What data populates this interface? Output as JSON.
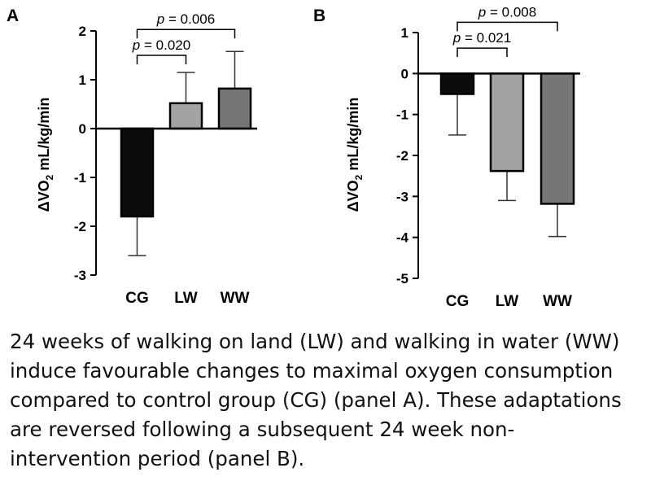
{
  "chart_data": [
    {
      "type": "bar",
      "panel_label": "A",
      "categories": [
        "CG",
        "LW",
        "WW"
      ],
      "values": [
        -1.8,
        0.52,
        0.82
      ],
      "error": [
        0.8,
        0.63,
        0.76
      ],
      "colors": [
        "#0c0c0c",
        "#a3a3a3",
        "#767676"
      ],
      "ylim": [
        -3,
        2
      ],
      "yticks": [
        2,
        1,
        0,
        -1,
        -2,
        -3
      ],
      "ylabel_main": "ΔVO",
      "ylabel_sub": "2",
      "ylabel_rest": " mL/kg/min",
      "xlabel": "",
      "brackets": [
        {
          "from": 0,
          "to": 1,
          "label": "p = 0.020",
          "p_letter": "p",
          "p_value": " = 0.020",
          "level": 1.5
        },
        {
          "from": 0,
          "to": 2,
          "label": "p = 0.006",
          "p_letter": "p",
          "p_value": " = 0.006",
          "level": 2.03
        }
      ]
    },
    {
      "type": "bar",
      "panel_label": "B",
      "categories": [
        "CG",
        "LW",
        "WW"
      ],
      "values": [
        -0.5,
        -2.38,
        -3.18
      ],
      "error": [
        1.0,
        0.72,
        0.8
      ],
      "colors": [
        "#0c0c0c",
        "#a3a3a3",
        "#767676"
      ],
      "ylim": [
        -5,
        1
      ],
      "yticks": [
        1,
        0,
        -1,
        -2,
        -3,
        -4,
        -5
      ],
      "ylabel_main": "ΔVO",
      "ylabel_sub": "2",
      "ylabel_rest": " mL/kg/min",
      "xlabel": "",
      "brackets": [
        {
          "from": 0,
          "to": 1,
          "label": "p = 0.021",
          "p_letter": "p",
          "p_value": " = 0.021",
          "level": 0.62
        },
        {
          "from": 0,
          "to": 2,
          "label": "p = 0.008",
          "p_letter": "p",
          "p_value": " = 0.008",
          "level": 1.25
        }
      ]
    }
  ],
  "caption": {
    "lines": [
      "24 weeks of walking on land (LW) and walking in water (WW)",
      "induce favourable changes to maximal oxygen consumption",
      "compared to control group (CG) (panel A). These adaptations",
      "are reversed following a subsequent 24 week non-",
      "intervention period (panel B)."
    ]
  }
}
